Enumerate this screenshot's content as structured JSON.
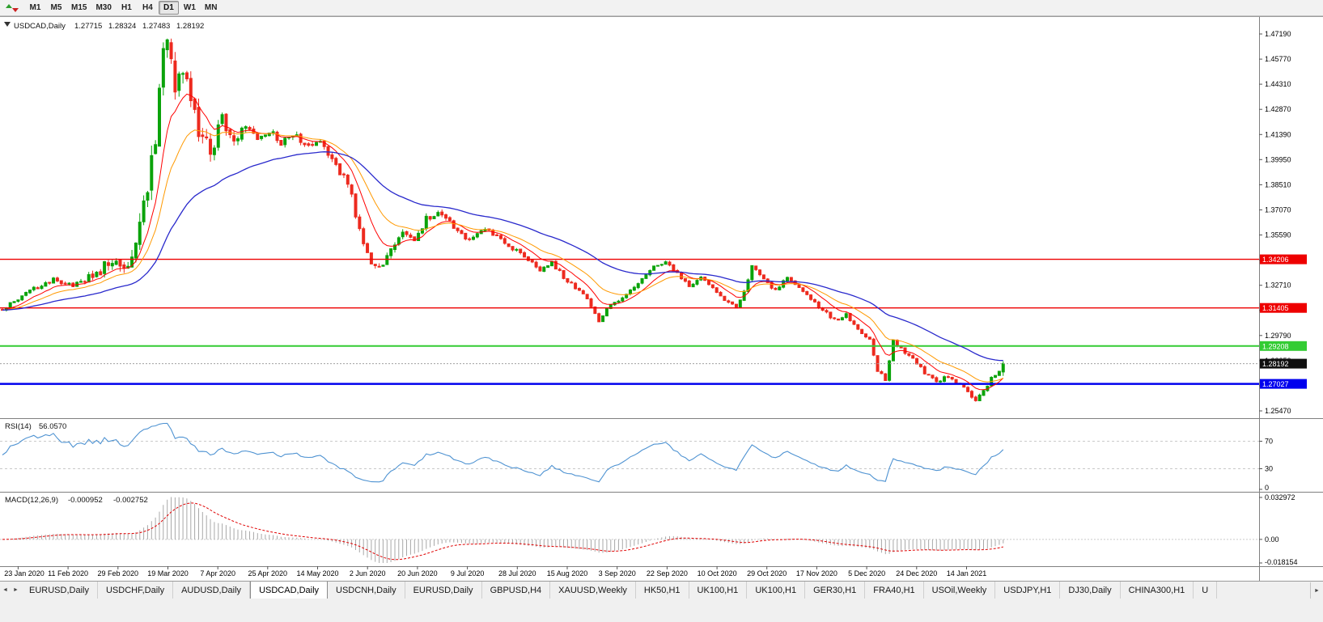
{
  "toolbar": {
    "timeframes": [
      {
        "label": "M1",
        "active": false
      },
      {
        "label": "M5",
        "active": false
      },
      {
        "label": "M15",
        "active": false
      },
      {
        "label": "M30",
        "active": false
      },
      {
        "label": "H1",
        "active": false
      },
      {
        "label": "H4",
        "active": false
      },
      {
        "label": "D1",
        "active": true
      },
      {
        "label": "W1",
        "active": false
      },
      {
        "label": "MN",
        "active": false
      }
    ]
  },
  "chart": {
    "title_symbol": "USDCAD,Daily",
    "ohlc": {
      "open": "1.27715",
      "high": "1.28324",
      "low": "1.27483",
      "close": "1.28192"
    }
  },
  "chart_data": {
    "type": "candlestick",
    "symbol": "USDCAD",
    "timeframe": "Daily",
    "bars_total": 256,
    "price_axis_range": [
      1.2547,
      1.4719
    ],
    "y_axis_ticks": [
      "1.47190",
      "1.45770",
      "1.44310",
      "1.42870",
      "1.41390",
      "1.39950",
      "1.38510",
      "1.37070",
      "1.35590",
      "1.34150",
      "1.32710",
      "1.31270",
      "1.29790",
      "1.28350",
      "1.26910",
      "1.25470"
    ],
    "x_axis_dates": [
      "23 Jan 2020",
      "11 Feb 2020",
      "29 Feb 2020",
      "19 Mar 2020",
      "7 Apr 2020",
      "25 Apr 2020",
      "14 May 2020",
      "2 Jun 2020",
      "20 Jun 2020",
      "9 Jul 2020",
      "28 Jul 2020",
      "15 Aug 2020",
      "3 Sep 2020",
      "22 Sep 2020",
      "10 Oct 2020",
      "29 Oct 2020",
      "17 Nov 2020",
      "5 Dec 2020",
      "24 Dec 2020",
      "14 Jan 2021"
    ],
    "price_anchors_format": "[bar_index, close_price]",
    "price_anchors": [
      [
        0,
        1.313
      ],
      [
        6,
        1.323
      ],
      [
        13,
        1.33
      ],
      [
        19,
        1.3275
      ],
      [
        24,
        1.334
      ],
      [
        28,
        1.3415
      ],
      [
        31,
        1.335
      ],
      [
        33,
        1.348
      ],
      [
        35,
        1.363
      ],
      [
        37,
        1.381
      ],
      [
        39,
        1.415
      ],
      [
        41,
        1.46
      ],
      [
        42,
        1.464
      ],
      [
        44,
        1.438
      ],
      [
        46,
        1.446
      ],
      [
        48,
        1.433
      ],
      [
        50,
        1.415
      ],
      [
        53,
        1.405
      ],
      [
        56,
        1.422
      ],
      [
        59,
        1.411
      ],
      [
        62,
        1.419
      ],
      [
        65,
        1.409
      ],
      [
        68,
        1.416
      ],
      [
        71,
        1.408
      ],
      [
        74,
        1.414
      ],
      [
        78,
        1.406
      ],
      [
        81,
        1.411
      ],
      [
        84,
        1.4
      ],
      [
        88,
        1.386
      ],
      [
        91,
        1.36
      ],
      [
        94,
        1.34
      ],
      [
        96,
        1.3365
      ],
      [
        99,
        1.348
      ],
      [
        102,
        1.357
      ],
      [
        105,
        1.354
      ],
      [
        108,
        1.365
      ],
      [
        111,
        1.37
      ],
      [
        114,
        1.364
      ],
      [
        117,
        1.356
      ],
      [
        120,
        1.354
      ],
      [
        123,
        1.359
      ],
      [
        127,
        1.353
      ],
      [
        131,
        1.347
      ],
      [
        134,
        1.341
      ],
      [
        137,
        1.336
      ],
      [
        140,
        1.34
      ],
      [
        143,
        1.332
      ],
      [
        146,
        1.326
      ],
      [
        149,
        1.319
      ],
      [
        152,
        1.307
      ],
      [
        154,
        1.313
      ],
      [
        157,
        1.319
      ],
      [
        160,
        1.324
      ],
      [
        163,
        1.331
      ],
      [
        166,
        1.338
      ],
      [
        169,
        1.341
      ],
      [
        172,
        1.334
      ],
      [
        175,
        1.327
      ],
      [
        178,
        1.332
      ],
      [
        181,
        1.326
      ],
      [
        184,
        1.319
      ],
      [
        187,
        1.314
      ],
      [
        189,
        1.324
      ],
      [
        191,
        1.338
      ],
      [
        194,
        1.331
      ],
      [
        197,
        1.324
      ],
      [
        200,
        1.332
      ],
      [
        203,
        1.326
      ],
      [
        206,
        1.319
      ],
      [
        209,
        1.313
      ],
      [
        212,
        1.307
      ],
      [
        215,
        1.31
      ],
      [
        218,
        1.302
      ],
      [
        221,
        1.296
      ],
      [
        223,
        1.278
      ],
      [
        225,
        1.273
      ],
      [
        227,
        1.295
      ],
      [
        229,
        1.291
      ],
      [
        232,
        1.284
      ],
      [
        235,
        1.277
      ],
      [
        238,
        1.271
      ],
      [
        241,
        1.275
      ],
      [
        244,
        1.27
      ],
      [
        246,
        1.265
      ],
      [
        248,
        1.261
      ],
      [
        250,
        1.266
      ],
      [
        252,
        1.273
      ],
      [
        254,
        1.277
      ],
      [
        255,
        1.2819
      ]
    ],
    "horizontal_lines": [
      {
        "price": 1.34206,
        "label": "1.34206",
        "color": "#EE0000",
        "width": 1.4
      },
      {
        "price": 1.31405,
        "label": "1.31405",
        "color": "#EE0000",
        "width": 1.4
      },
      {
        "price": 1.29208,
        "label": "1.29208",
        "color": "#33CC33",
        "width": 2
      },
      {
        "price": 1.27027,
        "label": "1.27027",
        "color": "#0000EE",
        "width": 2.5
      }
    ],
    "current_price": 1.28192,
    "moving_averages": [
      {
        "period": 9,
        "color": "#FF0000"
      },
      {
        "period": 18,
        "color": "#FF9900"
      },
      {
        "period": 45,
        "color": "#2929CC"
      }
    ],
    "indicators": {
      "rsi": {
        "label": "RSI(14)",
        "value": "56.0570",
        "levels": [
          "70",
          "30",
          "0"
        ]
      },
      "macd": {
        "label": "MACD(12,26,9)",
        "value": "-0.000952",
        "signal_value": "-0.002752",
        "scale_top": "0.032972",
        "scale_zero": "0.00",
        "scale_bottom": "-0.018154"
      }
    }
  },
  "tabs": {
    "items": [
      {
        "label": "EURUSD,Daily",
        "active": false
      },
      {
        "label": "USDCHF,Daily",
        "active": false
      },
      {
        "label": "AUDUSD,Daily",
        "active": false
      },
      {
        "label": "USDCAD,Daily",
        "active": true
      },
      {
        "label": "USDCNH,Daily",
        "active": false
      },
      {
        "label": "EURUSD,Daily",
        "active": false
      },
      {
        "label": "GBPUSD,H4",
        "active": false
      },
      {
        "label": "XAUUSD,Weekly",
        "active": false
      },
      {
        "label": "HK50,H1",
        "active": false
      },
      {
        "label": "UK100,H1",
        "active": false
      },
      {
        "label": "UK100,H1",
        "active": false
      },
      {
        "label": "GER30,H1",
        "active": false
      },
      {
        "label": "FRA40,H1",
        "active": false
      },
      {
        "label": "USOil,Weekly",
        "active": false
      },
      {
        "label": "USDJPY,H1",
        "active": false
      },
      {
        "label": "DJ30,Daily",
        "active": false
      },
      {
        "label": "CHINA300,H1",
        "active": false
      },
      {
        "label": "U",
        "active": false
      }
    ]
  },
  "colors": {
    "candle_up": "#0AA30A",
    "candle_down": "#ED2A1F",
    "rsi_line": "#4F93D2",
    "macd_histogram": "#A8A8A8",
    "macd_signal": "#E00000",
    "current_price_tag_bg": "#101010",
    "current_price_line": "#A0A0A0",
    "axis_text": "#000000",
    "panel_background": "#FFFFFF",
    "chrome_background": "#F0F0F0"
  }
}
